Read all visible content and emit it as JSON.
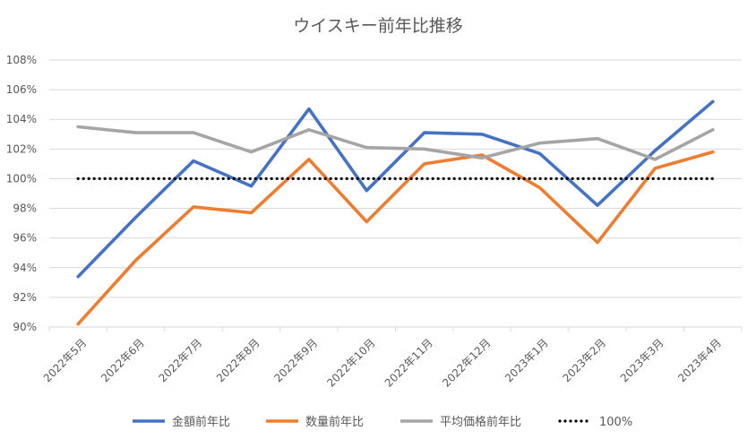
{
  "chart_data": {
    "type": "line",
    "title": "ウイスキー前年比推移",
    "xlabel": "",
    "ylabel": "",
    "categories": [
      "2022年5月",
      "2022年6月",
      "2022年7月",
      "2022年8月",
      "2022年9月",
      "2022年10月",
      "2022年11月",
      "2022年12月",
      "2023年1月",
      "2023年2月",
      "2023年3月",
      "2023年4月"
    ],
    "ylim": [
      0.9,
      1.08
    ],
    "ytick_values": [
      0.9,
      0.92,
      0.94,
      0.96,
      0.98,
      1.0,
      1.02,
      1.04,
      1.06,
      1.08
    ],
    "ytick_labels": [
      "90%",
      "92%",
      "94%",
      "96%",
      "98%",
      "100%",
      "102%",
      "104%",
      "106%",
      "108%"
    ],
    "grid": true,
    "legend_position": "bottom",
    "series": [
      {
        "name": "金額前年比",
        "color": "#4472C4",
        "style": "solid",
        "values": [
          0.934,
          0.974,
          1.012,
          0.995,
          1.047,
          0.992,
          1.031,
          1.03,
          1.017,
          0.982,
          1.019,
          1.052
        ]
      },
      {
        "name": "数量前年比",
        "color": "#ED7D31",
        "style": "solid",
        "values": [
          0.902,
          0.945,
          0.981,
          0.977,
          1.013,
          0.971,
          1.01,
          1.016,
          0.994,
          0.957,
          1.007,
          1.018
        ]
      },
      {
        "name": "平均価格前年比",
        "color": "#A5A5A5",
        "style": "solid",
        "values": [
          1.035,
          1.031,
          1.031,
          1.018,
          1.033,
          1.021,
          1.02,
          1.014,
          1.024,
          1.027,
          1.013,
          1.033
        ]
      },
      {
        "name": "100%",
        "color": "#000000",
        "style": "dotted",
        "values": [
          1.0,
          1.0,
          1.0,
          1.0,
          1.0,
          1.0,
          1.0,
          1.0,
          1.0,
          1.0,
          1.0,
          1.0
        ]
      }
    ]
  }
}
